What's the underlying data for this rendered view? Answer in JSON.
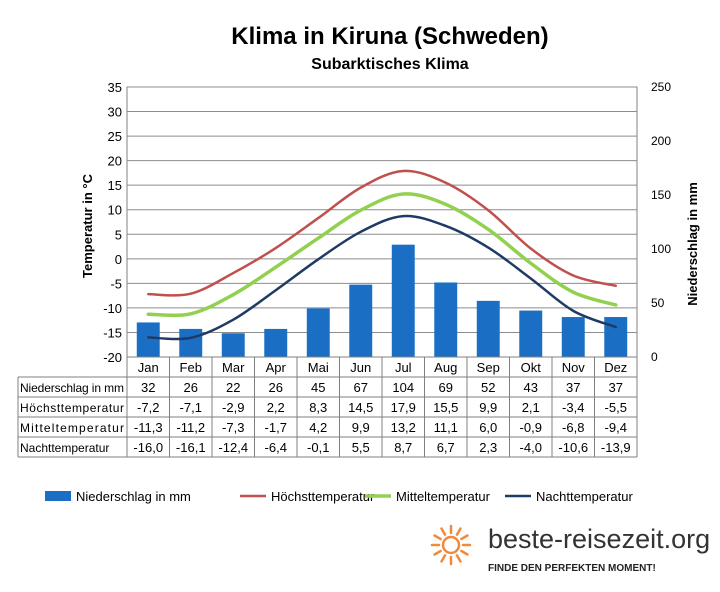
{
  "chart_data": {
    "type": "bar",
    "title": "Klima in Kiruna (Schweden)",
    "subtitle": "Subarktisches Klima",
    "categories": [
      "Jan",
      "Feb",
      "Mar",
      "Apr",
      "Mai",
      "Jun",
      "Jul",
      "Aug",
      "Sep",
      "Okt",
      "Nov",
      "Dez"
    ],
    "ylabel_left": "Temperatur in °C",
    "ylabel_right": "Niederschlag in mm",
    "ylim_left": [
      -20,
      35
    ],
    "ylim_right": [
      0,
      250
    ],
    "yticks_left": [
      35,
      30,
      25,
      20,
      15,
      10,
      5,
      0,
      -5,
      -10,
      -15,
      -20
    ],
    "yticks_right": [
      250,
      200,
      150,
      100,
      50,
      0
    ],
    "grid": "horizontal",
    "legend_position": "bottom",
    "series": [
      {
        "name": "Niederschlag in mm",
        "type": "bar",
        "axis": "right",
        "color": "#1a6fc4",
        "values": [
          32,
          26,
          22,
          26,
          45,
          67,
          104,
          69,
          52,
          43,
          37,
          37
        ],
        "labels": [
          "32",
          "26",
          "22",
          "26",
          "45",
          "67",
          "104",
          "69",
          "52",
          "43",
          "37",
          "37"
        ]
      },
      {
        "name": "Höchsttemperatur",
        "type": "line",
        "axis": "left",
        "color": "#c0504d",
        "values": [
          -7.2,
          -7.1,
          -2.9,
          2.2,
          8.3,
          14.5,
          17.9,
          15.5,
          9.9,
          2.1,
          -3.4,
          -5.5
        ],
        "labels": [
          "-7,2",
          "-7,1",
          "-2,9",
          "2,2",
          "8,3",
          "14,5",
          "17,9",
          "15,5",
          "9,9",
          "2,1",
          "-3,4",
          "-5,5"
        ]
      },
      {
        "name": "Mitteltemperatur",
        "type": "line",
        "axis": "left",
        "color": "#92d050",
        "values": [
          -11.3,
          -11.2,
          -7.3,
          -1.7,
          4.2,
          9.9,
          13.2,
          11.1,
          6.0,
          -0.9,
          -6.8,
          -9.4
        ],
        "labels": [
          "-11,3",
          "-11,2",
          "-7,3",
          "-1,7",
          "4,2",
          "9,9",
          "13,2",
          "11,1",
          "6,0",
          "-0,9",
          "-6,8",
          "-9,4"
        ]
      },
      {
        "name": "Nachttemperatur",
        "type": "line",
        "axis": "left",
        "color": "#1f3a64",
        "values": [
          -16.0,
          -16.1,
          -12.4,
          -6.4,
          -0.1,
          5.5,
          8.7,
          6.7,
          2.3,
          -4.0,
          -10.6,
          -13.9
        ],
        "labels": [
          "-16,0",
          "-16,1",
          "-12,4",
          "-6,4",
          "-0,1",
          "5,5",
          "8,7",
          "6,7",
          "2,3",
          "-4,0",
          "-10,6",
          "-13,9"
        ]
      }
    ]
  },
  "logo": {
    "text": "beste-reisezeit.org",
    "slogan": "FINDE DEN PERFEKTEN MOMENT!",
    "sun_color": "#f08a3c"
  }
}
